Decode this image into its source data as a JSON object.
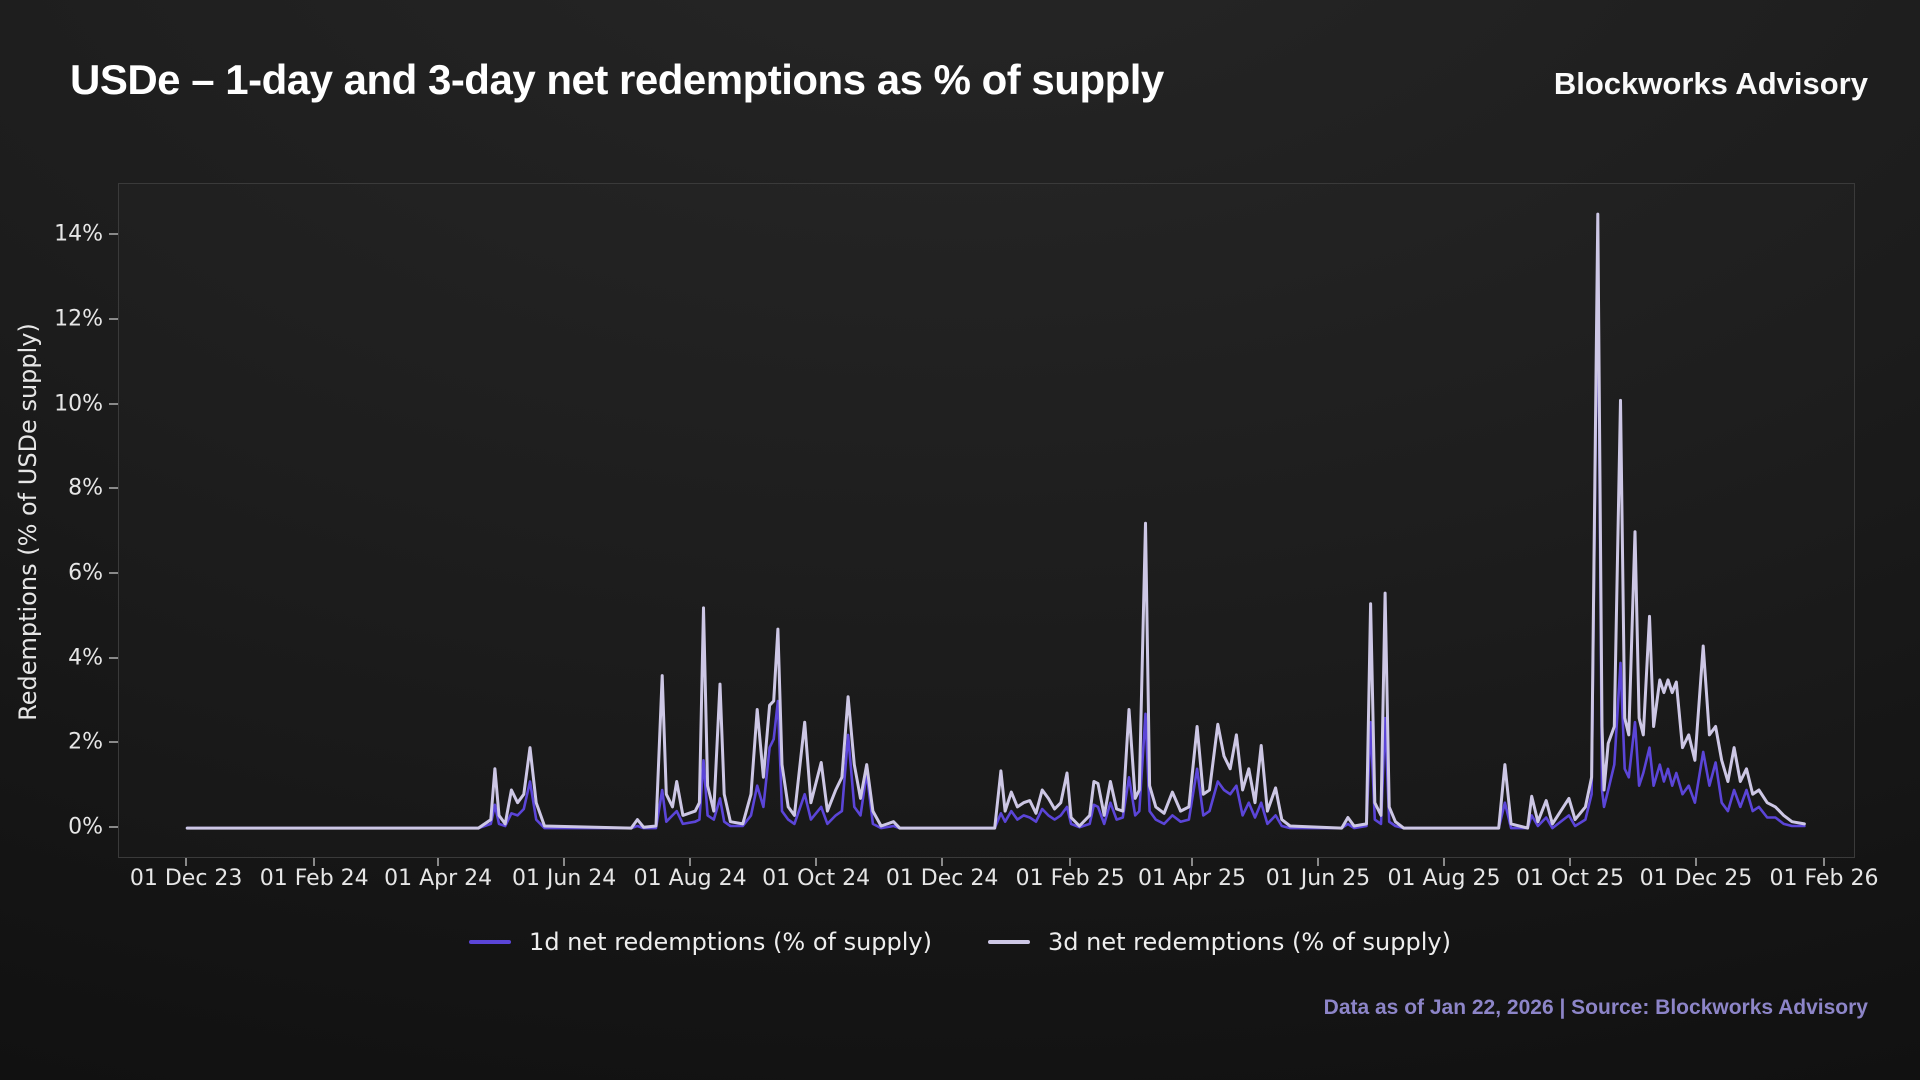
{
  "header": {
    "title": "USDe – 1-day and 3-day net redemptions as % of supply",
    "brand": "Blockworks Advisory"
  },
  "footer": {
    "note": "Data as of Jan 22, 2026 | Source: Blockworks Advisory"
  },
  "colors": {
    "series_1d": "#5b45d8",
    "series_3d": "#cdc7e5",
    "axis_text": "#e6e6e6",
    "footnote_text": "#8d85c8",
    "plot_border": "#3a3a3a"
  },
  "chart_data": {
    "type": "line",
    "title": "USDe – 1-day and 3-day net redemptions as % of supply",
    "xlabel": "",
    "ylabel": "Redemptions (% of USDe supply)",
    "grid": false,
    "legend_position": "bottom-center",
    "legend": [
      {
        "name": "1d net redemptions (% of supply)",
        "color": "#5b45d8"
      },
      {
        "name": "3d net redemptions (% of supply)",
        "color": "#cdc7e5"
      }
    ],
    "x_domain": [
      "2023-10-29",
      "2026-02-16"
    ],
    "y_domain": [
      -0.73,
      15.21
    ],
    "y_ticks": [
      0,
      2,
      4,
      6,
      8,
      10,
      12,
      14
    ],
    "y_tick_labels": [
      "0%",
      "2%",
      "4%",
      "6%",
      "8%",
      "10%",
      "12%",
      "14%"
    ],
    "x_ticks": [
      "2023-12-01",
      "2024-02-01",
      "2024-04-01",
      "2024-06-01",
      "2024-08-01",
      "2024-10-01",
      "2024-12-01",
      "2025-02-01",
      "2025-04-01",
      "2025-06-01",
      "2025-08-01",
      "2025-10-01",
      "2025-12-01",
      "2026-02-01"
    ],
    "x_tick_labels": [
      "01 Dec 23",
      "01 Feb 24",
      "01 Apr 24",
      "01 Jun 24",
      "01 Aug 24",
      "01 Oct 24",
      "01 Dec 24",
      "01 Feb 25",
      "01 Apr 25",
      "01 Jun 25",
      "01 Aug 25",
      "01 Oct 25",
      "01 Dec 25",
      "01 Feb 26"
    ],
    "series_note": "points are [date, 1d_net_redemptions_pct, 3d_net_redemptions_pct]",
    "points": [
      [
        "2023-12-01",
        0,
        0
      ],
      [
        "2024-04-20",
        0,
        0
      ],
      [
        "2024-04-26",
        0.1,
        0.2
      ],
      [
        "2024-04-28",
        0.55,
        1.4
      ],
      [
        "2024-04-30",
        0.1,
        0.3
      ],
      [
        "2024-05-03",
        0.05,
        0.1
      ],
      [
        "2024-05-06",
        0.35,
        0.9
      ],
      [
        "2024-05-09",
        0.3,
        0.6
      ],
      [
        "2024-05-12",
        0.45,
        0.8
      ],
      [
        "2024-05-15",
        1.1,
        1.9
      ],
      [
        "2024-05-18",
        0.2,
        0.6
      ],
      [
        "2024-05-22",
        0,
        0.05
      ],
      [
        "2024-07-03",
        0,
        0
      ],
      [
        "2024-07-06",
        0.05,
        0.2
      ],
      [
        "2024-07-09",
        0,
        0.02
      ],
      [
        "2024-07-15",
        0,
        0.05
      ],
      [
        "2024-07-18",
        0.9,
        3.6
      ],
      [
        "2024-07-20",
        0.15,
        0.8
      ],
      [
        "2024-07-23",
        0.3,
        0.5
      ],
      [
        "2024-07-25",
        0.4,
        1.1
      ],
      [
        "2024-07-28",
        0.1,
        0.3
      ],
      [
        "2024-08-03",
        0.15,
        0.4
      ],
      [
        "2024-08-05",
        0.2,
        0.6
      ],
      [
        "2024-08-07",
        1.6,
        5.2
      ],
      [
        "2024-08-09",
        0.3,
        1.0
      ],
      [
        "2024-08-12",
        0.2,
        0.4
      ],
      [
        "2024-08-15",
        0.7,
        3.4
      ],
      [
        "2024-08-17",
        0.15,
        0.8
      ],
      [
        "2024-08-20",
        0.05,
        0.15
      ],
      [
        "2024-08-26",
        0.05,
        0.1
      ],
      [
        "2024-08-30",
        0.3,
        0.8
      ],
      [
        "2024-09-02",
        1.0,
        2.8
      ],
      [
        "2024-09-05",
        0.5,
        1.2
      ],
      [
        "2024-09-08",
        1.9,
        2.9
      ],
      [
        "2024-09-10",
        2.1,
        3.0
      ],
      [
        "2024-09-12",
        3.0,
        4.7
      ],
      [
        "2024-09-14",
        0.4,
        1.5
      ],
      [
        "2024-09-17",
        0.2,
        0.5
      ],
      [
        "2024-09-20",
        0.1,
        0.3
      ],
      [
        "2024-09-25",
        0.8,
        2.5
      ],
      [
        "2024-09-28",
        0.2,
        0.6
      ],
      [
        "2024-10-03",
        0.5,
        1.55
      ],
      [
        "2024-10-06",
        0.1,
        0.4
      ],
      [
        "2024-10-10",
        0.3,
        0.9
      ],
      [
        "2024-10-13",
        0.4,
        1.2
      ],
      [
        "2024-10-16",
        2.2,
        3.1
      ],
      [
        "2024-10-19",
        0.5,
        1.5
      ],
      [
        "2024-10-22",
        0.3,
        0.7
      ],
      [
        "2024-10-25",
        1.3,
        1.5
      ],
      [
        "2024-10-28",
        0.1,
        0.4
      ],
      [
        "2024-11-01",
        0,
        0.05
      ],
      [
        "2024-11-07",
        0.05,
        0.15
      ],
      [
        "2024-11-10",
        0,
        0
      ],
      [
        "2024-12-26",
        0,
        0
      ],
      [
        "2024-12-29",
        0.35,
        1.35
      ],
      [
        "2024-12-31",
        0.15,
        0.4
      ],
      [
        "2025-01-03",
        0.4,
        0.85
      ],
      [
        "2025-01-06",
        0.2,
        0.5
      ],
      [
        "2025-01-09",
        0.3,
        0.6
      ],
      [
        "2025-01-12",
        0.25,
        0.65
      ],
      [
        "2025-01-15",
        0.15,
        0.35
      ],
      [
        "2025-01-18",
        0.45,
        0.9
      ],
      [
        "2025-01-21",
        0.3,
        0.7
      ],
      [
        "2025-01-24",
        0.2,
        0.45
      ],
      [
        "2025-01-27",
        0.3,
        0.6
      ],
      [
        "2025-01-30",
        0.5,
        1.3
      ],
      [
        "2025-02-01",
        0.1,
        0.25
      ],
      [
        "2025-02-05",
        0.02,
        0.05
      ],
      [
        "2025-02-10",
        0.1,
        0.3
      ],
      [
        "2025-02-12",
        0.55,
        1.1
      ],
      [
        "2025-02-14",
        0.5,
        1.05
      ],
      [
        "2025-02-17",
        0.1,
        0.3
      ],
      [
        "2025-02-20",
        0.6,
        1.1
      ],
      [
        "2025-02-23",
        0.2,
        0.45
      ],
      [
        "2025-02-26",
        0.25,
        0.4
      ],
      [
        "2025-03-01",
        1.2,
        2.8
      ],
      [
        "2025-03-04",
        0.3,
        0.7
      ],
      [
        "2025-03-06",
        0.4,
        0.9
      ],
      [
        "2025-03-09",
        2.7,
        7.2
      ],
      [
        "2025-03-11",
        0.4,
        1.0
      ],
      [
        "2025-03-14",
        0.2,
        0.5
      ],
      [
        "2025-03-18",
        0.1,
        0.35
      ],
      [
        "2025-03-22",
        0.3,
        0.85
      ],
      [
        "2025-03-26",
        0.15,
        0.4
      ],
      [
        "2025-03-30",
        0.2,
        0.5
      ],
      [
        "2025-04-03",
        1.4,
        2.4
      ],
      [
        "2025-04-06",
        0.3,
        0.8
      ],
      [
        "2025-04-09",
        0.4,
        0.9
      ],
      [
        "2025-04-13",
        1.1,
        2.45
      ],
      [
        "2025-04-16",
        0.9,
        1.7
      ],
      [
        "2025-04-19",
        0.8,
        1.4
      ],
      [
        "2025-04-22",
        1.0,
        2.2
      ],
      [
        "2025-04-25",
        0.3,
        0.9
      ],
      [
        "2025-04-28",
        0.6,
        1.4
      ],
      [
        "2025-05-01",
        0.25,
        0.6
      ],
      [
        "2025-05-04",
        0.6,
        1.95
      ],
      [
        "2025-05-07",
        0.1,
        0.4
      ],
      [
        "2025-05-11",
        0.3,
        0.95
      ],
      [
        "2025-05-14",
        0.05,
        0.2
      ],
      [
        "2025-05-18",
        0,
        0.05
      ],
      [
        "2025-06-12",
        0,
        0
      ],
      [
        "2025-06-15",
        0.1,
        0.25
      ],
      [
        "2025-06-18",
        0,
        0.05
      ],
      [
        "2025-06-24",
        0.05,
        0.1
      ],
      [
        "2025-06-26",
        2.5,
        5.3
      ],
      [
        "2025-06-28",
        0.2,
        0.6
      ],
      [
        "2025-07-01",
        0.1,
        0.3
      ],
      [
        "2025-07-03",
        2.6,
        5.55
      ],
      [
        "2025-07-05",
        0.15,
        0.5
      ],
      [
        "2025-07-08",
        0.05,
        0.15
      ],
      [
        "2025-07-12",
        0,
        0
      ],
      [
        "2025-08-27",
        0,
        0
      ],
      [
        "2025-08-30",
        0.6,
        1.5
      ],
      [
        "2025-09-02",
        0,
        0.1
      ],
      [
        "2025-09-10",
        0,
        0
      ],
      [
        "2025-09-12",
        0.3,
        0.75
      ],
      [
        "2025-09-15",
        0.05,
        0.15
      ],
      [
        "2025-09-19",
        0.25,
        0.65
      ],
      [
        "2025-09-22",
        0,
        0.1
      ],
      [
        "2025-09-30",
        0.3,
        0.7
      ],
      [
        "2025-10-03",
        0.05,
        0.2
      ],
      [
        "2025-10-08",
        0.2,
        0.5
      ],
      [
        "2025-10-11",
        0.8,
        1.2
      ],
      [
        "2025-10-14",
        13.7,
        14.5
      ],
      [
        "2025-10-16",
        0.9,
        2.4
      ],
      [
        "2025-10-17",
        0.5,
        0.9
      ],
      [
        "2025-10-19",
        0.9,
        2.0
      ],
      [
        "2025-10-22",
        1.5,
        2.4
      ],
      [
        "2025-10-25",
        3.9,
        10.1
      ],
      [
        "2025-10-27",
        1.4,
        2.6
      ],
      [
        "2025-10-29",
        1.2,
        2.2
      ],
      [
        "2025-11-01",
        2.5,
        7.0
      ],
      [
        "2025-11-03",
        1.0,
        2.6
      ],
      [
        "2025-11-05",
        1.3,
        2.2
      ],
      [
        "2025-11-08",
        1.9,
        5.0
      ],
      [
        "2025-11-10",
        1.0,
        2.4
      ],
      [
        "2025-11-13",
        1.5,
        3.5
      ],
      [
        "2025-11-15",
        1.1,
        3.2
      ],
      [
        "2025-11-17",
        1.4,
        3.5
      ],
      [
        "2025-11-19",
        1.0,
        3.2
      ],
      [
        "2025-11-21",
        1.3,
        3.45
      ],
      [
        "2025-11-24",
        0.8,
        1.9
      ],
      [
        "2025-11-27",
        1.0,
        2.2
      ],
      [
        "2025-11-30",
        0.6,
        1.6
      ],
      [
        "2025-12-04",
        1.8,
        4.3
      ],
      [
        "2025-12-07",
        1.0,
        2.2
      ],
      [
        "2025-12-10",
        1.55,
        2.4
      ],
      [
        "2025-12-13",
        0.6,
        1.6
      ],
      [
        "2025-12-16",
        0.4,
        1.1
      ],
      [
        "2025-12-19",
        0.9,
        1.9
      ],
      [
        "2025-12-22",
        0.5,
        1.1
      ],
      [
        "2025-12-25",
        0.9,
        1.4
      ],
      [
        "2025-12-28",
        0.4,
        0.8
      ],
      [
        "2025-12-31",
        0.5,
        0.9
      ],
      [
        "2026-01-04",
        0.25,
        0.6
      ],
      [
        "2026-01-08",
        0.25,
        0.5
      ],
      [
        "2026-01-12",
        0.1,
        0.3
      ],
      [
        "2026-01-16",
        0.05,
        0.15
      ],
      [
        "2026-01-22",
        0.05,
        0.1
      ]
    ]
  }
}
